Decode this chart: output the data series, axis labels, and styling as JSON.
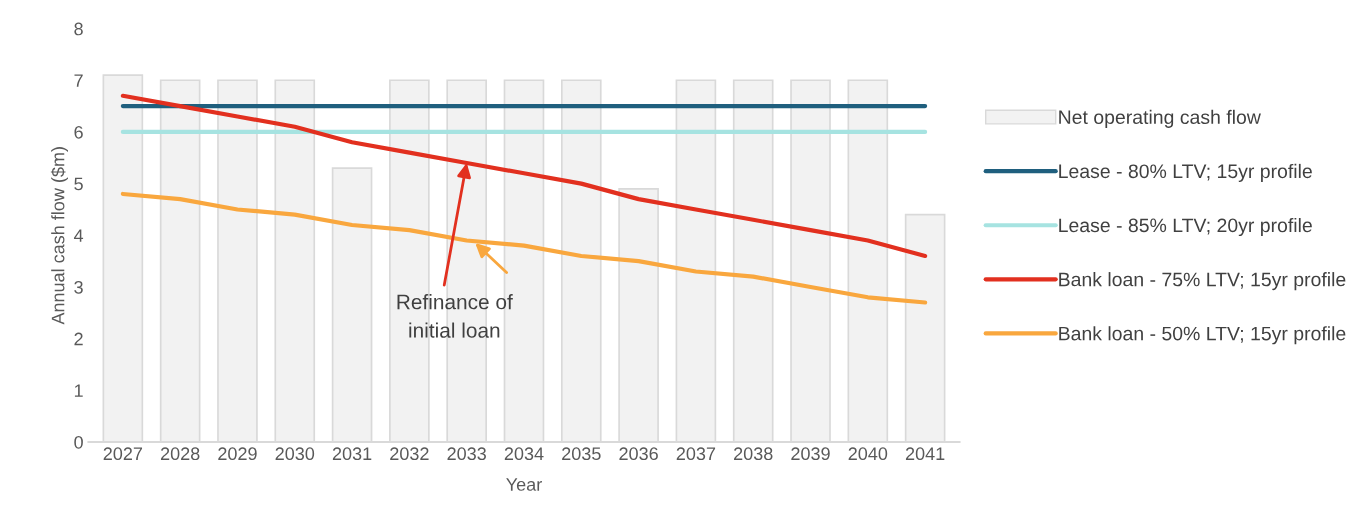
{
  "chart_data": {
    "type": "bar",
    "xlabel": "Year",
    "ylabel": "Annual cash flow ($m)",
    "categories": [
      "2027",
      "2028",
      "2029",
      "2030",
      "2031",
      "2032",
      "2033",
      "2034",
      "2035",
      "2036",
      "2037",
      "2038",
      "2039",
      "2040",
      "2041"
    ],
    "series": [
      {
        "name": "Net operating cash flow",
        "color": "#f2f2f2",
        "values": [
          7.1,
          7.0,
          7.0,
          7.0,
          5.3,
          7.0,
          7.0,
          7.0,
          7.0,
          4.9,
          7.0,
          7.0,
          7.0,
          7.0,
          4.4
        ]
      },
      {
        "name": "Lease - 80% LTV; 15yr profile",
        "type": "line",
        "color": "#1f5f7e",
        "values": [
          6.5,
          6.5,
          6.5,
          6.5,
          6.5,
          6.5,
          6.5,
          6.5,
          6.5,
          6.5,
          6.5,
          6.5,
          6.5,
          6.5,
          6.5
        ]
      },
      {
        "name": "Lease - 85% LTV; 20yr profile",
        "type": "line",
        "color": "#a6e3e1",
        "values": [
          6.0,
          6.0,
          6.0,
          6.0,
          6.0,
          6.0,
          6.0,
          6.0,
          6.0,
          6.0,
          6.0,
          6.0,
          6.0,
          6.0,
          6.0
        ]
      },
      {
        "name": "Bank loan - 75% LTV; 15yr profile",
        "type": "line",
        "color": "#e2301f",
        "values": [
          6.7,
          6.5,
          6.3,
          6.1,
          5.8,
          5.6,
          5.4,
          5.2,
          5.0,
          4.7,
          4.5,
          4.3,
          4.1,
          3.9,
          3.6
        ]
      },
      {
        "name": "Bank loan - 50% LTV; 15yr profile",
        "type": "line",
        "color": "#f9a73e",
        "values": [
          4.8,
          4.7,
          4.5,
          4.4,
          4.2,
          4.1,
          3.9,
          3.8,
          3.6,
          3.5,
          3.3,
          3.2,
          3.0,
          2.8,
          2.7
        ]
      }
    ],
    "ylim": [
      0,
      8
    ],
    "yticks": [
      0,
      1,
      2,
      3,
      4,
      5,
      6,
      7,
      8
    ],
    "grid": false,
    "legend": "right",
    "marker": "none",
    "line_style": "solid",
    "annotations": [
      {
        "text": "Refinance of\ninitial loan",
        "x": "2033",
        "y": 5.4
      }
    ]
  }
}
